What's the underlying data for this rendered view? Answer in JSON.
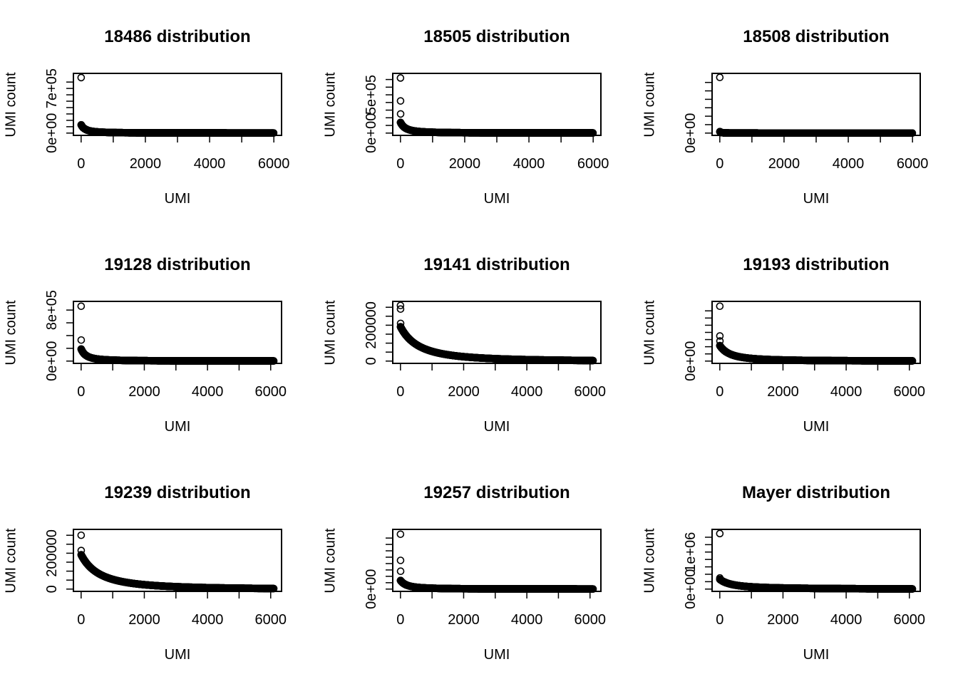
{
  "figure": {
    "layout": "3x3 grid",
    "shared_ylabel": "UMI count",
    "shared_xlabel": "UMI"
  },
  "chart_data": [
    {
      "type": "scatter",
      "title": "18486 distribution",
      "xlabel": "UMI",
      "ylabel": "UMI count",
      "xlim": [
        0,
        6000
      ],
      "ylim": [
        0,
        900000
      ],
      "x_ticks": [
        0,
        2000,
        4000,
        6000
      ],
      "y_ticks": [
        0,
        100000,
        200000,
        300000,
        400000,
        500000,
        600000,
        700000,
        800000
      ],
      "y_tick_labels": [
        {
          "value": 0,
          "label": "0e+00"
        },
        {
          "value": 700000,
          "label": "7e+05"
        }
      ],
      "n_points": 6000,
      "outliers": [
        {
          "x": 1,
          "y": 870000
        }
      ],
      "curve": {
        "y0": 130000,
        "knee": 0.1,
        "plateau": 0.0
      }
    },
    {
      "type": "scatter",
      "title": "18505 distribution",
      "xlabel": "UMI",
      "ylabel": "UMI count",
      "xlim": [
        0,
        6000
      ],
      "ylim": [
        0,
        750000
      ],
      "x_ticks": [
        0,
        2000,
        4000,
        6000
      ],
      "y_ticks": [
        0,
        100000,
        200000,
        300000,
        400000,
        500000,
        600000,
        700000
      ],
      "y_tick_labels": [
        {
          "value": 0,
          "label": "0e+00"
        },
        {
          "value": 500000,
          "label": "5e+05"
        }
      ],
      "n_points": 6000,
      "outliers": [
        {
          "x": 1,
          "y": 720000
        },
        {
          "x": 3,
          "y": 420000
        },
        {
          "x": 5,
          "y": 250000
        }
      ],
      "curve": {
        "y0": 140000,
        "knee": 0.12,
        "plateau": 0.0
      }
    },
    {
      "type": "scatter",
      "title": "18508 distribution",
      "xlabel": "UMI",
      "ylabel": "UMI count",
      "xlim": [
        0,
        6000
      ],
      "ylim": [
        0,
        6800000
      ],
      "x_ticks": [
        0,
        2000,
        4000,
        6000
      ],
      "y_ticks": [
        0,
        1000000,
        2000000,
        3000000,
        4000000,
        5000000,
        6000000
      ],
      "y_tick_labels": [
        {
          "value": 0,
          "label": "0e+00"
        }
      ],
      "n_points": 6000,
      "outliers": [
        {
          "x": 1,
          "y": 6600000
        }
      ],
      "curve": {
        "y0": 180000,
        "knee": 0.03,
        "plateau": 0.0
      }
    },
    {
      "type": "scatter",
      "title": "19128 distribution",
      "xlabel": "UMI",
      "ylabel": "UMI count",
      "xlim": [
        0,
        6100
      ],
      "ylim": [
        0,
        900000
      ],
      "x_ticks": [
        0,
        2000,
        4000,
        6000
      ],
      "y_ticks": [
        0,
        200000,
        400000,
        600000,
        800000
      ],
      "y_tick_labels": [
        {
          "value": 0,
          "label": "0e+00"
        },
        {
          "value": 800000,
          "label": "8e+05"
        }
      ],
      "n_points": 6100,
      "outliers": [
        {
          "x": 1,
          "y": 860000
        },
        {
          "x": 3,
          "y": 330000
        }
      ],
      "curve": {
        "y0": 190000,
        "knee": 0.12,
        "plateau": 0.0
      }
    },
    {
      "type": "scatter",
      "title": "19141 distribution",
      "xlabel": "UMI",
      "ylabel": "UMI count",
      "xlim": [
        0,
        6100
      ],
      "ylim": [
        0,
        320000
      ],
      "x_ticks": [
        0,
        2000,
        4000,
        6000
      ],
      "y_ticks": [
        0,
        50000,
        100000,
        150000,
        200000,
        250000,
        300000
      ],
      "y_tick_labels": [
        {
          "value": 0,
          "label": "0"
        },
        {
          "value": 200000,
          "label": "200000"
        }
      ],
      "n_points": 6100,
      "outliers": [
        {
          "x": 1,
          "y": 310000
        },
        {
          "x": 3,
          "y": 290000
        },
        {
          "x": 5,
          "y": 210000
        }
      ],
      "curve": {
        "y0": 190000,
        "knee": 0.45,
        "plateau": 0.0
      }
    },
    {
      "type": "scatter",
      "title": "19193 distribution",
      "xlabel": "UMI",
      "ylabel": "UMI count",
      "xlim": [
        0,
        6100
      ],
      "ylim": [
        0,
        1600000
      ],
      "x_ticks": [
        0,
        2000,
        4000,
        6000
      ],
      "y_ticks": [
        0,
        200000,
        400000,
        600000,
        800000,
        1000000,
        1200000,
        1400000
      ],
      "y_tick_labels": [
        {
          "value": 0,
          "label": "0e+00"
        }
      ],
      "n_points": 6100,
      "outliers": [
        {
          "x": 1,
          "y": 1530000
        },
        {
          "x": 3,
          "y": 700000
        },
        {
          "x": 5,
          "y": 560000
        }
      ],
      "curve": {
        "y0": 430000,
        "knee": 0.25,
        "plateau": 0.0
      }
    },
    {
      "type": "scatter",
      "title": "19239 distribution",
      "xlabel": "UMI",
      "ylabel": "UMI count",
      "xlim": [
        0,
        6100
      ],
      "ylim": [
        0,
        320000
      ],
      "x_ticks": [
        0,
        2000,
        4000,
        6000
      ],
      "y_ticks": [
        0,
        50000,
        100000,
        150000,
        200000,
        250000,
        300000
      ],
      "y_tick_labels": [
        {
          "value": 0,
          "label": "0"
        },
        {
          "value": 200000,
          "label": "200000"
        }
      ],
      "n_points": 6100,
      "outliers": [
        {
          "x": 1,
          "y": 300000
        },
        {
          "x": 3,
          "y": 215000
        }
      ],
      "curve": {
        "y0": 190000,
        "knee": 0.45,
        "plateau": 0.0
      }
    },
    {
      "type": "scatter",
      "title": "19257 distribution",
      "xlabel": "UMI",
      "ylabel": "UMI count",
      "xlim": [
        0,
        6100
      ],
      "ylim": [
        0,
        1800000
      ],
      "x_ticks": [
        0,
        2000,
        4000,
        6000
      ],
      "y_ticks": [
        0,
        200000,
        400000,
        600000,
        800000,
        1000000,
        1200000,
        1400000,
        1600000
      ],
      "y_tick_labels": [
        {
          "value": 0,
          "label": "0e+00"
        }
      ],
      "n_points": 6100,
      "outliers": [
        {
          "x": 1,
          "y": 1720000
        },
        {
          "x": 3,
          "y": 900000
        },
        {
          "x": 5,
          "y": 560000
        }
      ],
      "curve": {
        "y0": 270000,
        "knee": 0.15,
        "plateau": 0.0
      }
    },
    {
      "type": "scatter",
      "title": "Mayer distribution",
      "xlabel": "UMI",
      "ylabel": "UMI count",
      "xlim": [
        0,
        6100
      ],
      "ylim": [
        0,
        1550000
      ],
      "x_ticks": [
        0,
        2000,
        4000,
        6000
      ],
      "y_ticks": [
        0,
        200000,
        400000,
        600000,
        800000,
        1000000,
        1200000,
        1400000
      ],
      "y_tick_labels": [
        {
          "value": 0,
          "label": "0e+00"
        },
        {
          "value": 1000000,
          "label": "1e+06"
        }
      ],
      "n_points": 6100,
      "outliers": [
        {
          "x": 1,
          "y": 1500000
        },
        {
          "x": 3,
          "y": 300000
        }
      ],
      "curve": {
        "y0": 260000,
        "knee": 0.3,
        "plateau": 0.05
      }
    }
  ]
}
